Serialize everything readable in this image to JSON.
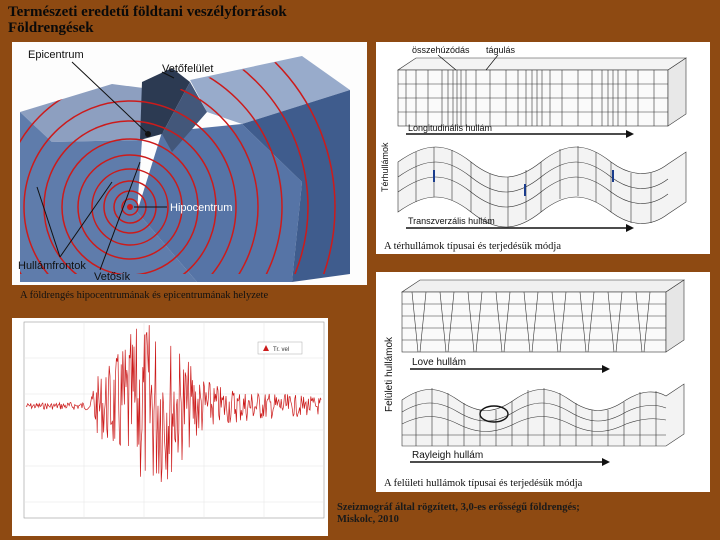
{
  "title": {
    "line1": "Természeti eredetű földtani veszélyforrások",
    "line2": "Földrengések"
  },
  "earthquake_diagram": {
    "labels": {
      "epicenter": "Epicentrum",
      "fault_surface": "Vetőfelület",
      "hypocenter": "Hipocentrum",
      "wavefronts": "Hullámfrontok",
      "fault_plane": "Vetősík"
    },
    "caption": "A földrengés hipocentrumának és epicentrumának helyzete"
  },
  "body_waves": {
    "labels": {
      "compression": "összehúzódás",
      "expansion": "tágulás",
      "side": "Térhullámok",
      "longitudinal": "Longitudinális hullám",
      "transverse": "Transzverzális hullám"
    },
    "caption": "A térhullámok típusai és terjedésük módja"
  },
  "surface_waves": {
    "labels": {
      "side": "Felületi hullámok",
      "love": "Love hullám",
      "rayleigh": "Rayleigh hullám"
    },
    "caption": "A felületi hullámok típusai és terjedésük módja"
  },
  "seismogram": {
    "legend": "Tr. vel",
    "caption_line1": "Szeizmográf által rögzített, 3,0-es erősségű földrengés;",
    "caption_line2": "Miskolc, 2010"
  },
  "colors": {
    "background": "#8e4a12",
    "wave_red": "#cc1b1b",
    "block_blue": "#5d79a8"
  }
}
